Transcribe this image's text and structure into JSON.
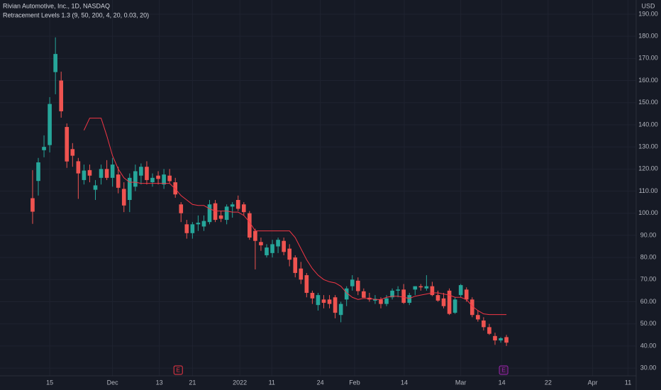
{
  "chart_data": {
    "type": "candlestick",
    "title": "Rivian Automotive, Inc., 1D, NASDAQ",
    "currency": "USD",
    "up_color": "#26a69a",
    "down_color": "#ef5350",
    "grid": true,
    "xlim": [
      -5.71,
      105.6
    ],
    "ylim": [
      26.5,
      196.4
    ],
    "yticks": [
      {
        "value": 30,
        "label": "30.00"
      },
      {
        "value": 40,
        "label": "40.00"
      },
      {
        "value": 50,
        "label": "50.00"
      },
      {
        "value": 60,
        "label": "60.00"
      },
      {
        "value": 70,
        "label": "70.00"
      },
      {
        "value": 80,
        "label": "80.00"
      },
      {
        "value": 90,
        "label": "90.00"
      },
      {
        "value": 100,
        "label": "100.00"
      },
      {
        "value": 110,
        "label": "110.00"
      },
      {
        "value": 120,
        "label": "120.00"
      },
      {
        "value": 130,
        "label": "130.00"
      },
      {
        "value": 140,
        "label": "140.00"
      },
      {
        "value": 150,
        "label": "150.00"
      },
      {
        "value": 160,
        "label": "160.00"
      },
      {
        "value": 170,
        "label": "170.00"
      },
      {
        "value": 180,
        "label": "180.00"
      },
      {
        "value": 190,
        "label": "190.00"
      }
    ],
    "xticks": [
      {
        "value": 3,
        "label": "15"
      },
      {
        "value": 14,
        "label": "Dec"
      },
      {
        "value": 22.2,
        "label": "13"
      },
      {
        "value": 28,
        "label": "21"
      },
      {
        "value": 36.3,
        "label": "2022"
      },
      {
        "value": 41.9,
        "label": "11"
      },
      {
        "value": 50.4,
        "label": "24"
      },
      {
        "value": 56.4,
        "label": "Feb"
      },
      {
        "value": 65.1,
        "label": "14"
      },
      {
        "value": 75,
        "label": "Mar"
      },
      {
        "value": 82.2,
        "label": "14"
      },
      {
        "value": 90.3,
        "label": "22"
      },
      {
        "value": 98.1,
        "label": "Apr"
      },
      {
        "value": 104.3,
        "label": "11"
      }
    ],
    "open": [
      106.8,
      114.6,
      128.5,
      130.8,
      163.8,
      160,
      139,
      129,
      123.5,
      115,
      119.5,
      110.6,
      116,
      120,
      116,
      117.5,
      111,
      106,
      112,
      117,
      121,
      114,
      117,
      113,
      117,
      114,
      104,
      95,
      91,
      95,
      94,
      96,
      104.5,
      99,
      97,
      103,
      106,
      104,
      100,
      92,
      87,
      81,
      82,
      85,
      87.5,
      84,
      80,
      75,
      72,
      64,
      58.5,
      61,
      61,
      62,
      54,
      61,
      67,
      69.5,
      64.7,
      61.8,
      60.5,
      61,
      59,
      62,
      65,
      65.5,
      59.5,
      65.5,
      67,
      66,
      67,
      63,
      61.5,
      65,
      55,
      63,
      65.5,
      61,
      54,
      51.5,
      48.5,
      44.5,
      42.5,
      44
    ],
    "high": [
      119.5,
      125,
      135.2,
      152.5,
      179.5,
      164,
      140.6,
      131.7,
      125,
      122,
      122,
      115,
      122,
      124,
      125,
      121,
      114,
      118,
      122,
      122.5,
      123.5,
      118,
      119,
      120,
      120,
      116,
      105,
      97,
      96,
      99,
      99,
      106,
      106,
      101,
      104,
      105,
      108,
      105,
      101,
      93,
      89,
      86,
      88,
      89,
      89,
      86,
      81,
      78,
      73,
      65,
      64,
      63,
      63,
      63,
      60,
      67,
      72,
      71,
      66,
      64,
      63,
      62,
      63,
      66,
      67,
      68,
      64,
      67,
      68,
      72,
      69,
      65,
      64,
      66,
      62,
      68,
      66.5,
      62,
      56,
      53,
      50,
      46,
      44,
      45
    ],
    "low": [
      95.2,
      108,
      125.3,
      127.5,
      153.8,
      143.2,
      120.5,
      121,
      106.5,
      113,
      114,
      106,
      113,
      115,
      112,
      109,
      100.5,
      100.5,
      110,
      113,
      113,
      112,
      113,
      111,
      113.7,
      107,
      96,
      88.5,
      88.5,
      92,
      92,
      95,
      96,
      96,
      95,
      98,
      101,
      99,
      88,
      74.6,
      83,
      80,
      80,
      82,
      81,
      76,
      71,
      68,
      62,
      59,
      56,
      57,
      57,
      52.5,
      50.7,
      58,
      65,
      63,
      62,
      60,
      59,
      57,
      58,
      61,
      62,
      59,
      58.5,
      63,
      65,
      65,
      62.5,
      60,
      57,
      54,
      54.5,
      62,
      60,
      53,
      51,
      47,
      45,
      40.5,
      41.5,
      40
    ],
    "close": [
      100.7,
      123,
      130,
      149.4,
      172,
      146.1,
      123.4,
      126,
      118,
      119.3,
      117,
      112.6,
      120,
      116,
      122,
      111.5,
      103.5,
      116,
      119,
      121,
      115,
      116,
      115.5,
      117.5,
      114.5,
      108.5,
      100,
      91,
      95,
      95.7,
      96.5,
      104,
      97,
      97.5,
      103,
      104,
      102,
      100.5,
      89,
      87.5,
      85.5,
      84.5,
      86,
      88,
      82.5,
      79,
      73,
      70,
      64,
      61.5,
      63,
      59.5,
      59,
      55,
      59,
      66,
      70,
      64.8,
      61.8,
      61,
      61.3,
      59,
      61.5,
      65,
      65.5,
      59.5,
      63,
      67,
      66.5,
      67,
      63,
      60.5,
      58,
      54.5,
      61,
      67.5,
      61,
      54,
      52,
      48.5,
      45.5,
      42.5,
      43.5,
      41.5
    ],
    "series": [
      {
        "name": "Retracement Levels 1.3 (9, 50, 200, 4, 20, 0.03, 20)",
        "color": "#f23645",
        "values": [
          null,
          null,
          null,
          null,
          null,
          null,
          null,
          null,
          null,
          137.5,
          143,
          143,
          143,
          135,
          126,
          120,
          116,
          114,
          114,
          113.5,
          113.5,
          113.5,
          113.5,
          113.5,
          113.5,
          111,
          108,
          106,
          104,
          103.5,
          103.5,
          102,
          101,
          101,
          101,
          100.5,
          100.5,
          99,
          96,
          92,
          92,
          92,
          92,
          92,
          92,
          92,
          89,
          84,
          79,
          75,
          72,
          70,
          69,
          68.5,
          67,
          64,
          62,
          61,
          61.5,
          61.5,
          61,
          61,
          62,
          62.5,
          62.5,
          62,
          61.5,
          62.5,
          63,
          63.5,
          64,
          64,
          63.5,
          63,
          62,
          62,
          61,
          58,
          56,
          54.5,
          54.2,
          54.2,
          54.2,
          54.2
        ]
      }
    ],
    "events": [
      {
        "x": 25.5,
        "label": "E",
        "color": "#f23645",
        "fill": "#161a25"
      },
      {
        "x": 82.5,
        "label": "E",
        "color": "#9c27b0",
        "fill": "#2a1a35"
      }
    ]
  }
}
